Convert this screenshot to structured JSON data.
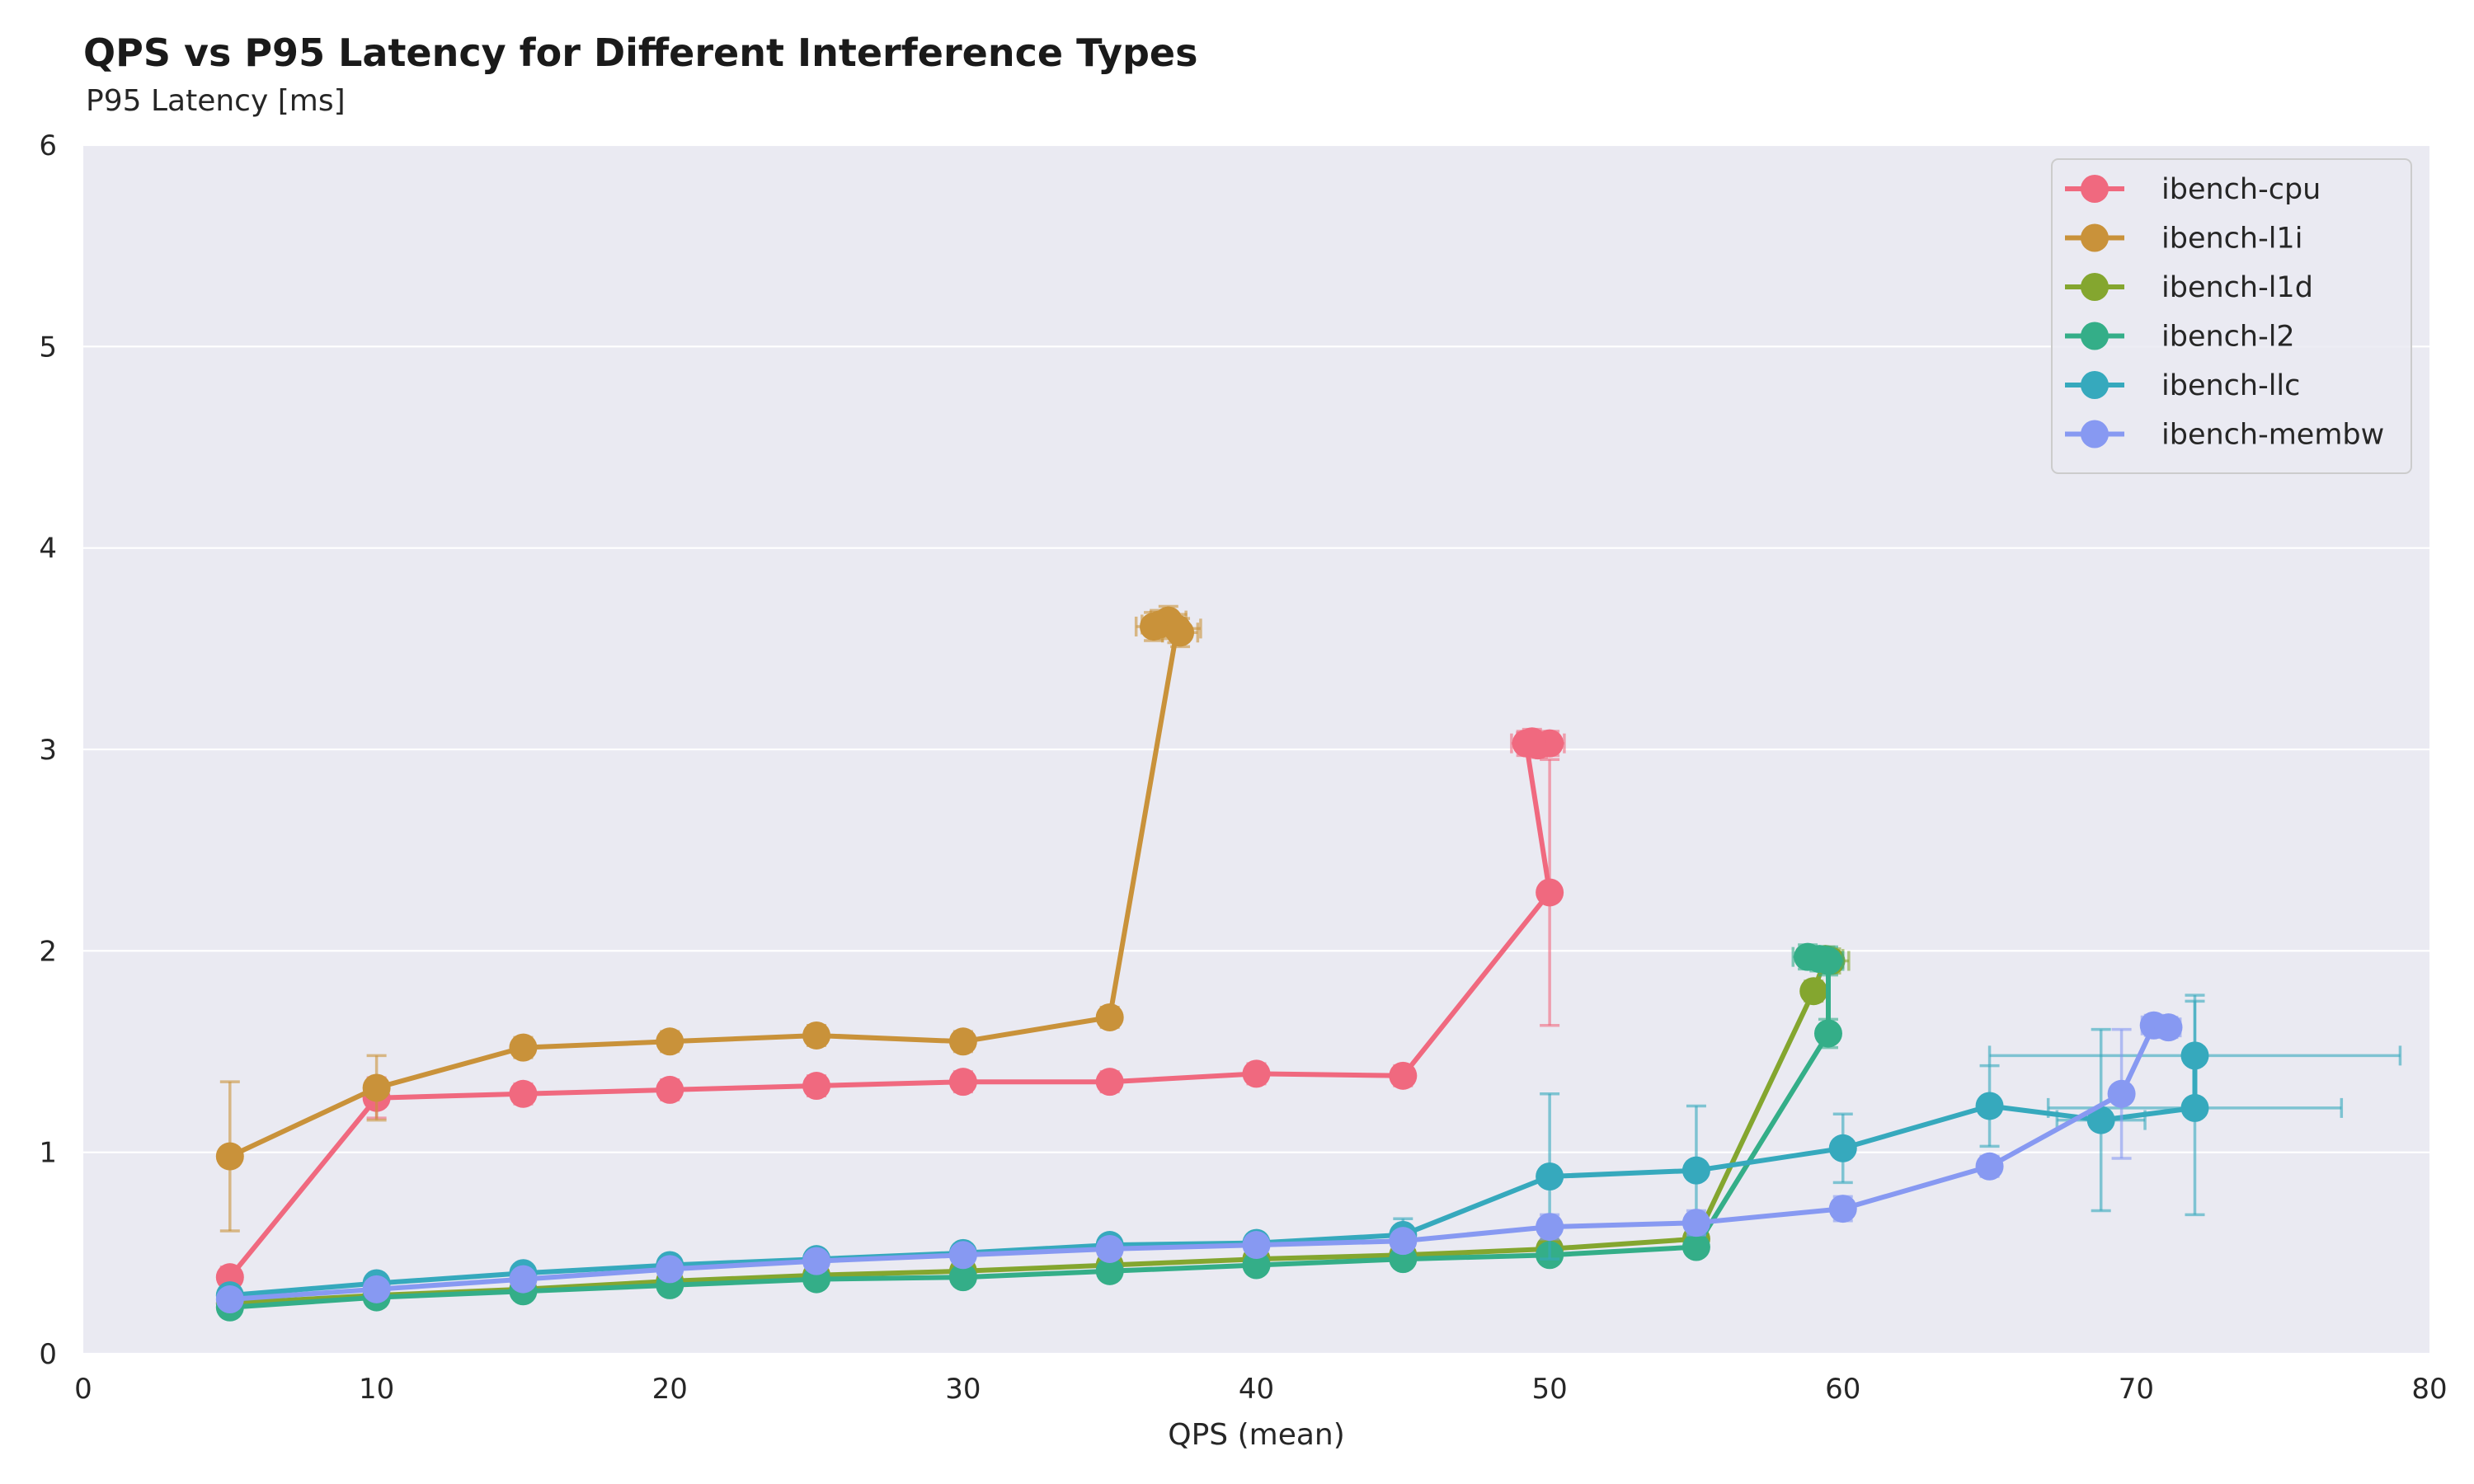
{
  "chart_data": {
    "type": "line",
    "title": "QPS vs P95 Latency for Different Interference Types",
    "xlabel": "QPS (mean)",
    "ylabel": "P95 Latency [ms]",
    "xlim": [
      0,
      80
    ],
    "ylim": [
      0,
      6
    ],
    "xticks": [
      0,
      10,
      20,
      30,
      40,
      50,
      60,
      70,
      80
    ],
    "yticks": [
      0,
      1,
      2,
      3,
      4,
      5,
      6
    ],
    "grid": true,
    "legend_position": "top-right",
    "background_color": "#eaeaf2",
    "series": [
      {
        "name": "ibench-cpu",
        "color": "#f0697f",
        "points": [
          {
            "x": 5,
            "y": 0.38,
            "yerr": 0.05
          },
          {
            "x": 10,
            "y": 1.27,
            "yerr": 0.1
          },
          {
            "x": 15,
            "y": 1.29,
            "yerr": 0.05
          },
          {
            "x": 20,
            "y": 1.31,
            "yerr": 0.05
          },
          {
            "x": 25,
            "y": 1.33,
            "yerr": 0.05
          },
          {
            "x": 30,
            "y": 1.35,
            "yerr": 0.05
          },
          {
            "x": 35,
            "y": 1.35,
            "yerr": 0.05
          },
          {
            "x": 40,
            "y": 1.39,
            "yerr": 0.05
          },
          {
            "x": 45,
            "y": 1.38,
            "yerr": 0.05
          },
          {
            "x": 50,
            "y": 2.29,
            "yerr": 0.66
          },
          {
            "x": 49.2,
            "y": 3.03,
            "yerr": 0.06,
            "xerr": 0.5
          },
          {
            "x": 49.6,
            "y": 3.02,
            "yerr": 0.06,
            "xerr": 0.5
          },
          {
            "x": 50.0,
            "y": 3.03,
            "yerr": 0.06,
            "xerr": 0.5
          },
          {
            "x": 49.4,
            "y": 3.04,
            "yerr": 0.06,
            "xerr": 0.5
          }
        ]
      },
      {
        "name": "ibench-l1i",
        "color": "#c9923a",
        "points": [
          {
            "x": 5,
            "y": 0.98,
            "yerr": 0.37
          },
          {
            "x": 10,
            "y": 1.32,
            "yerr": 0.16
          },
          {
            "x": 15,
            "y": 1.52,
            "yerr": 0.05
          },
          {
            "x": 20,
            "y": 1.55,
            "yerr": 0.05
          },
          {
            "x": 25,
            "y": 1.58,
            "yerr": 0.05
          },
          {
            "x": 30,
            "y": 1.55,
            "yerr": 0.05
          },
          {
            "x": 35,
            "y": 1.67,
            "yerr": 0.05
          },
          {
            "x": 37.3,
            "y": 3.6,
            "yerr": 0.07,
            "xerr": 0.8
          },
          {
            "x": 36.7,
            "y": 3.62,
            "yerr": 0.07,
            "xerr": 0.6
          },
          {
            "x": 37.0,
            "y": 3.64,
            "yerr": 0.07,
            "xerr": 0.6
          },
          {
            "x": 36.5,
            "y": 3.61,
            "yerr": 0.07,
            "xerr": 0.6
          },
          {
            "x": 37.4,
            "y": 3.58,
            "yerr": 0.07,
            "xerr": 0.6
          }
        ]
      },
      {
        "name": "ibench-l1d",
        "color": "#84a62f",
        "points": [
          {
            "x": 5,
            "y": 0.25,
            "yerr": 0.03
          },
          {
            "x": 10,
            "y": 0.29,
            "yerr": 0.03
          },
          {
            "x": 15,
            "y": 0.32,
            "yerr": 0.03
          },
          {
            "x": 20,
            "y": 0.36,
            "yerr": 0.03
          },
          {
            "x": 25,
            "y": 0.39,
            "yerr": 0.03
          },
          {
            "x": 30,
            "y": 0.41,
            "yerr": 0.03
          },
          {
            "x": 35,
            "y": 0.44,
            "yerr": 0.03
          },
          {
            "x": 40,
            "y": 0.47,
            "yerr": 0.03
          },
          {
            "x": 45,
            "y": 0.49,
            "yerr": 0.03
          },
          {
            "x": 50,
            "y": 0.52,
            "yerr": 0.03
          },
          {
            "x": 55,
            "y": 0.57,
            "yerr": 0.03
          },
          {
            "x": 59,
            "y": 1.8,
            "yerr": 0.05
          },
          {
            "x": 59.4,
            "y": 1.96,
            "yerr": 0.06,
            "xerr": 0.6
          },
          {
            "x": 59.6,
            "y": 1.95,
            "yerr": 0.06,
            "xerr": 0.6
          }
        ]
      },
      {
        "name": "ibench-l2",
        "color": "#34ae88",
        "points": [
          {
            "x": 5,
            "y": 0.23,
            "yerr": 0.03
          },
          {
            "x": 10,
            "y": 0.28,
            "yerr": 0.03
          },
          {
            "x": 15,
            "y": 0.31,
            "yerr": 0.03
          },
          {
            "x": 20,
            "y": 0.34,
            "yerr": 0.03
          },
          {
            "x": 25,
            "y": 0.37,
            "yerr": 0.03
          },
          {
            "x": 30,
            "y": 0.38,
            "yerr": 0.03
          },
          {
            "x": 35,
            "y": 0.41,
            "yerr": 0.03
          },
          {
            "x": 40,
            "y": 0.44,
            "yerr": 0.03
          },
          {
            "x": 45,
            "y": 0.47,
            "yerr": 0.03
          },
          {
            "x": 50,
            "y": 0.49,
            "yerr": 0.03
          },
          {
            "x": 55,
            "y": 0.53,
            "yerr": 0.03
          },
          {
            "x": 59.5,
            "y": 1.59,
            "yerr": 0.07
          },
          {
            "x": 59.5,
            "y": 1.95,
            "yerr": 0.07,
            "xerr": 0.5
          },
          {
            "x": 58.8,
            "y": 1.97,
            "yerr": 0.06,
            "xerr": 0.5
          },
          {
            "x": 59.2,
            "y": 1.96,
            "yerr": 0.06,
            "xerr": 0.5
          }
        ]
      },
      {
        "name": "ibench-llc",
        "color": "#36a9bd",
        "points": [
          {
            "x": 5,
            "y": 0.29,
            "yerr": 0.03
          },
          {
            "x": 10,
            "y": 0.35,
            "yerr": 0.03
          },
          {
            "x": 15,
            "y": 0.4,
            "yerr": 0.03
          },
          {
            "x": 20,
            "y": 0.44,
            "yerr": 0.03
          },
          {
            "x": 25,
            "y": 0.47,
            "yerr": 0.03
          },
          {
            "x": 30,
            "y": 0.5,
            "yerr": 0.03
          },
          {
            "x": 35,
            "y": 0.54,
            "yerr": 0.03
          },
          {
            "x": 40,
            "y": 0.55,
            "yerr": 0.03
          },
          {
            "x": 45,
            "y": 0.59,
            "yerr": 0.08
          },
          {
            "x": 50,
            "y": 0.88,
            "yerr": 0.41
          },
          {
            "x": 55,
            "y": 0.91,
            "yerr": 0.32
          },
          {
            "x": 60,
            "y": 1.02,
            "yerr": 0.17
          },
          {
            "x": 65,
            "y": 1.23,
            "yerr": 0.2
          },
          {
            "x": 68.8,
            "y": 1.16,
            "yerr": 0.45,
            "xerr": 1.5
          },
          {
            "x": 72,
            "y": 1.22,
            "yerr": 0.53,
            "xerr": 5
          },
          {
            "x": 72,
            "y": 1.48,
            "yerr": 0.3,
            "xerr": 7
          }
        ]
      },
      {
        "name": "ibench-membw",
        "color": "#8799f2",
        "points": [
          {
            "x": 5,
            "y": 0.27,
            "yerr": 0.03
          },
          {
            "x": 10,
            "y": 0.32,
            "yerr": 0.03
          },
          {
            "x": 15,
            "y": 0.37,
            "yerr": 0.03
          },
          {
            "x": 20,
            "y": 0.42,
            "yerr": 0.03
          },
          {
            "x": 25,
            "y": 0.46,
            "yerr": 0.03
          },
          {
            "x": 30,
            "y": 0.49,
            "yerr": 0.03
          },
          {
            "x": 35,
            "y": 0.52,
            "yerr": 0.03
          },
          {
            "x": 40,
            "y": 0.54,
            "yerr": 0.03
          },
          {
            "x": 45,
            "y": 0.56,
            "yerr": 0.03
          },
          {
            "x": 50,
            "y": 0.63,
            "yerr": 0.06
          },
          {
            "x": 55,
            "y": 0.65,
            "yerr": 0.06
          },
          {
            "x": 60,
            "y": 0.72,
            "yerr": 0.06
          },
          {
            "x": 65,
            "y": 0.93,
            "yerr": 0.05
          },
          {
            "x": 69.5,
            "y": 1.29,
            "yerr": 0.32
          },
          {
            "x": 70.6,
            "y": 1.63,
            "yerr": 0.05,
            "xerr": 0.4
          },
          {
            "x": 71.1,
            "y": 1.62,
            "yerr": 0.05,
            "xerr": 0.4
          }
        ]
      }
    ]
  }
}
